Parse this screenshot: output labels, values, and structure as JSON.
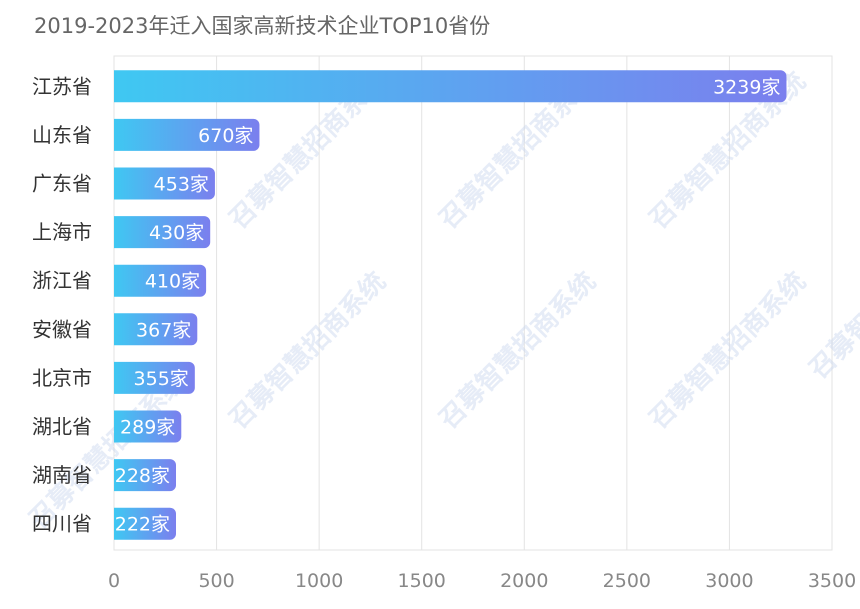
{
  "chart_data": {
    "type": "bar",
    "orientation": "horizontal",
    "title": "2019-2023年迁入国家高新技术企业TOP10省份",
    "categories": [
      "江苏省",
      "山东省",
      "广东省",
      "上海市",
      "浙江省",
      "安徽省",
      "北京市",
      "湖北省",
      "湖南省",
      "四川省"
    ],
    "values": [
      3239,
      670,
      453,
      430,
      410,
      367,
      355,
      289,
      228,
      222
    ],
    "value_suffix": "家",
    "xlim": [
      0,
      3500
    ],
    "xticks": [
      0,
      500,
      1000,
      1500,
      2000,
      2500,
      3000,
      3500
    ],
    "grid": true,
    "legend": "none",
    "colors": {
      "bar_start": "#3fc8f2",
      "bar_end": "#7b7fee",
      "grid": "#e3e3e3",
      "text": "#333333",
      "tick": "#888888"
    }
  },
  "watermark": "召募智慧招商系统"
}
